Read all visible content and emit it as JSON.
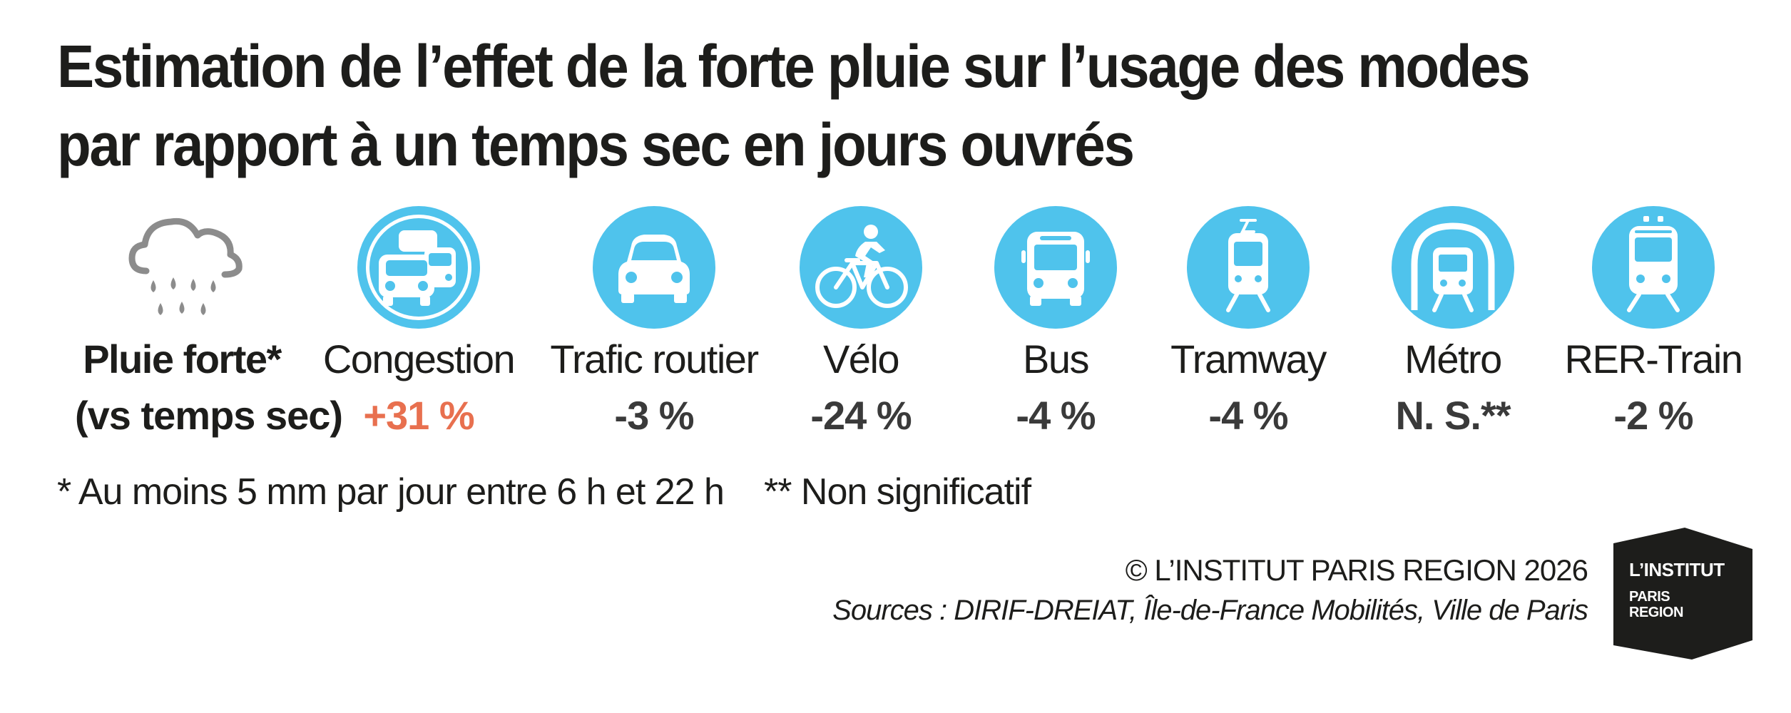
{
  "title": "Estimation de l’effet de la forte pluie sur l’usage des modes par rapport à un temps sec en jours ouvrés",
  "colors": {
    "circle": "#4fc3ec",
    "accent": "#e8704f",
    "icon_grey": "#8c8c8c",
    "text": "#1d1d1b",
    "logo_bg": "#1d1d1b"
  },
  "rain": {
    "icon": "rain-cloud-icon",
    "label": "Pluie forte*",
    "sub": "(vs temps sec)"
  },
  "modes": [
    {
      "icon": "traffic-jam-icon",
      "label": "Congestion",
      "value": "+31 %"
    },
    {
      "icon": "car-icon",
      "label": "Trafic routier",
      "value": "-3 %"
    },
    {
      "icon": "bicycle-icon",
      "label": "Vélo",
      "value": "-24 %"
    },
    {
      "icon": "bus-icon",
      "label": "Bus",
      "value": "-4 %"
    },
    {
      "icon": "tram-icon",
      "label": "Tramway",
      "value": "-4 %"
    },
    {
      "icon": "metro-icon",
      "label": "Métro",
      "value": "N. S.**"
    },
    {
      "icon": "train-icon",
      "label": "RER-Train",
      "value": "-2 %"
    }
  ],
  "footnotes": [
    "* Au moins 5 mm par jour entre 6 h et 22 h",
    "** Non significatif"
  ],
  "copyright": "© L’INSTITUT PARIS REGION 2026",
  "sources": "Sources : DIRIF-DREIAT, Île-de-France Mobilités, Ville de Paris",
  "logo": {
    "main": "L’INSTITUT",
    "line1": "PARIS",
    "line2": "REGION"
  }
}
